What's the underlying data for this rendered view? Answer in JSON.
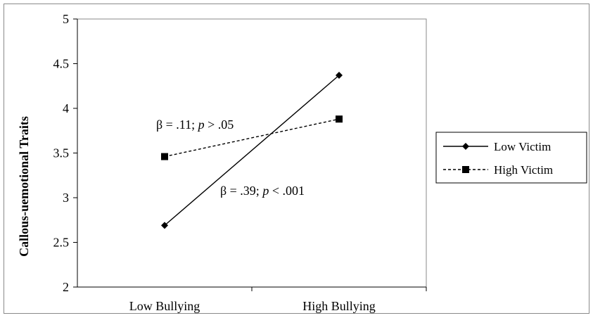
{
  "chart_data": {
    "type": "line",
    "title": "",
    "xlabel": "",
    "ylabel": "Callous-uemotional Traits",
    "categories": [
      "Low Bullying",
      "High Bullying"
    ],
    "ylim": [
      2,
      5
    ],
    "yticks": [
      "2",
      "2.5",
      "3",
      "3.5",
      "4",
      "4.5",
      "5"
    ],
    "grid": false,
    "legend_position": "right",
    "series": [
      {
        "name": "Low Victim",
        "values": [
          2.69,
          4.37
        ],
        "line": "solid",
        "marker": "diamond",
        "color": "#000000"
      },
      {
        "name": "High Victim",
        "values": [
          3.46,
          3.88
        ],
        "line": "dashed",
        "marker": "square",
        "color": "#000000"
      }
    ],
    "annotations": [
      {
        "beta": "β = .11; ",
        "p": "p",
        "rest": " > .05"
      },
      {
        "beta": "β = .39; ",
        "p": "p",
        "rest": " < .001"
      }
    ]
  }
}
